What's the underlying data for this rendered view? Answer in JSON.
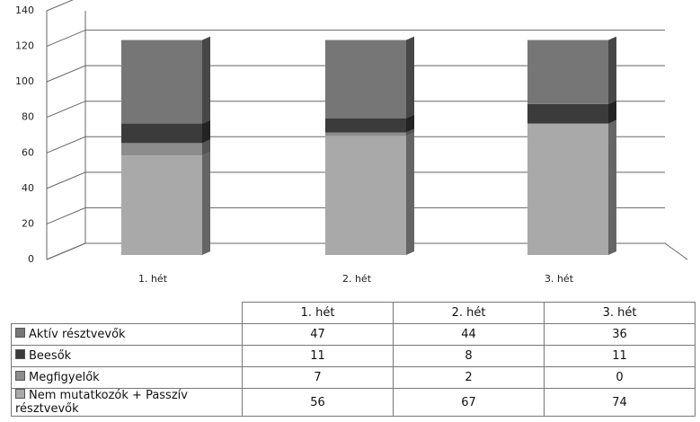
{
  "chart_data": {
    "type": "bar",
    "stacked": true,
    "categories": [
      "1. hét",
      "2. hét",
      "3. hét"
    ],
    "series": [
      {
        "name": "Aktív résztvevők",
        "color": "#767676",
        "values": [
          47,
          44,
          36
        ]
      },
      {
        "name": "Beesők",
        "color": "#3b3b3b",
        "values": [
          11,
          8,
          11
        ]
      },
      {
        "name": "Megfigyelők",
        "color": "#8c8c8c",
        "values": [
          7,
          2,
          0
        ]
      },
      {
        "name": "Nem mutatkozók + Passzív résztvevők",
        "color": "#a9a9a9",
        "values": [
          56,
          67,
          74
        ]
      }
    ],
    "ylim": [
      0,
      140
    ],
    "yticks": [
      0,
      20,
      40,
      60,
      80,
      100,
      120,
      140
    ],
    "grid": true
  }
}
